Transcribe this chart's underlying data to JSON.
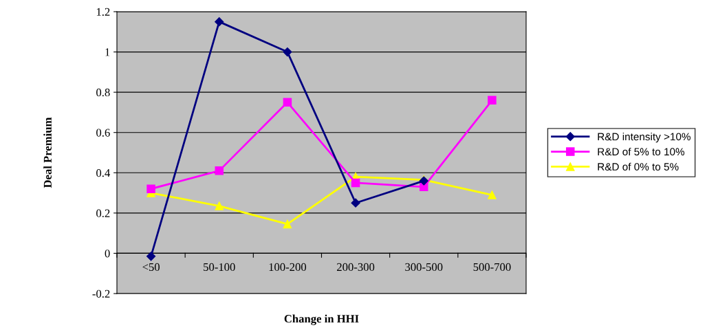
{
  "chart_data": {
    "type": "line",
    "xlabel": "Change in HHI",
    "ylabel": "Deal Premium",
    "categories": [
      "<50",
      "50-100",
      "100-200",
      "200-300",
      "300-500",
      "500-700"
    ],
    "series": [
      {
        "name": "R&D intensity >10%",
        "color": "#000080",
        "marker": "diamond",
        "values": [
          -0.015,
          1.15,
          1.0,
          0.25,
          0.36,
          null
        ]
      },
      {
        "name": "R&D of 5% to 10%",
        "color": "#ff00ff",
        "marker": "square",
        "values": [
          0.32,
          0.41,
          0.75,
          0.35,
          0.33,
          0.76
        ]
      },
      {
        "name": "R&D of 0% to 5%",
        "color": "#ffff00",
        "marker": "triangle",
        "values": [
          0.3,
          0.235,
          0.145,
          0.38,
          0.365,
          0.29
        ]
      }
    ],
    "ylim": [
      -0.2,
      1.2
    ],
    "yticks": [
      -0.2,
      0,
      0.2,
      0.4,
      0.6,
      0.8,
      1,
      1.2
    ],
    "grid": "y",
    "legend": "right"
  }
}
